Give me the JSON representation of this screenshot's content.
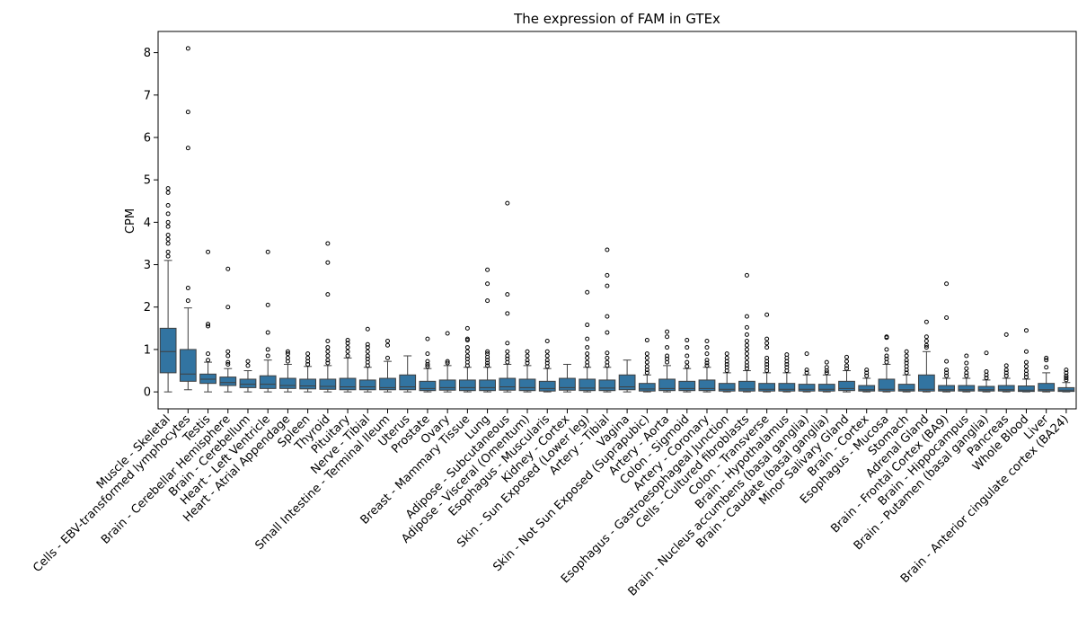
{
  "chart_data": {
    "type": "box",
    "title": "The expression of FAM in GTEx",
    "xlabel": "",
    "ylabel": "CPM",
    "ylim": [
      -0.4,
      8.5
    ],
    "yticks": [
      0,
      1,
      2,
      3,
      4,
      5,
      6,
      7,
      8
    ],
    "color": "#3274a1",
    "categories": [
      "Muscle - Skeletal",
      "Cells - EBV-transformed lymphocytes",
      "Testis",
      "Brain - Cerebellar Hemisphere",
      "Brain - Cerebellum",
      "Heart - Left Ventricle",
      "Heart - Atrial Appendage",
      "Spleen",
      "Thyroid",
      "Pituitary",
      "Nerve - Tibial",
      "Small Intestine - Terminal Ileum",
      "Uterus",
      "Prostate",
      "Ovary",
      "Breast - Mammary Tissue",
      "Lung",
      "Adipose - Subcutaneous",
      "Adipose - Visceral (Omentum)",
      "Esophagus - Muscularis",
      "Kidney - Cortex",
      "Skin - Sun Exposed (Lower leg)",
      "Artery - Tibial",
      "Vagina",
      "Skin - Not Sun Exposed (Suprapubic)",
      "Artery - Aorta",
      "Colon - Sigmoid",
      "Artery - Coronary",
      "Esophagus - Gastroesophageal Junction",
      "Cells - Cultured fibroblasts",
      "Colon - Transverse",
      "Brain - Hypothalamus",
      "Brain - Nucleus accumbens (basal ganglia)",
      "Brain - Caudate (basal ganglia)",
      "Minor Salivary Gland",
      "Brain - Cortex",
      "Esophagus - Mucosa",
      "Stomach",
      "Adrenal Gland",
      "Brain - Frontal Cortex (BA9)",
      "Brain - Hippocampus",
      "Brain - Putamen (basal ganglia)",
      "Pancreas",
      "Whole Blood",
      "Liver",
      "Brain - Anterior cingulate cortex (BA24)"
    ],
    "boxes": [
      {
        "q1": 0.45,
        "median": 0.95,
        "q3": 1.5,
        "whislo": 0.0,
        "whishi": 3.1,
        "fliers": [
          3.2,
          3.3,
          3.5,
          3.6,
          3.7,
          3.9,
          4.0,
          4.2,
          4.4,
          4.7,
          4.8
        ]
      },
      {
        "q1": 0.25,
        "median": 0.42,
        "q3": 1.0,
        "whislo": 0.05,
        "whishi": 1.98,
        "fliers": [
          2.15,
          2.45,
          5.75,
          6.6,
          8.1
        ]
      },
      {
        "q1": 0.2,
        "median": 0.3,
        "q3": 0.42,
        "whislo": 0.0,
        "whishi": 0.7,
        "fliers": [
          0.75,
          0.9,
          1.55,
          1.6,
          3.3
        ]
      },
      {
        "q1": 0.15,
        "median": 0.22,
        "q3": 0.35,
        "whislo": 0.0,
        "whishi": 0.55,
        "fliers": [
          0.65,
          0.7,
          0.85,
          0.95,
          2.0,
          2.9
        ]
      },
      {
        "q1": 0.1,
        "median": 0.18,
        "q3": 0.3,
        "whislo": 0.0,
        "whishi": 0.5,
        "fliers": [
          0.62,
          0.72
        ]
      },
      {
        "q1": 0.08,
        "median": 0.18,
        "q3": 0.38,
        "whislo": 0.0,
        "whishi": 0.75,
        "fliers": [
          0.85,
          1.0,
          1.4,
          2.05,
          3.3
        ]
      },
      {
        "q1": 0.08,
        "median": 0.15,
        "q3": 0.32,
        "whislo": 0.0,
        "whishi": 0.65,
        "fliers": [
          0.72,
          0.8,
          0.9,
          0.95
        ]
      },
      {
        "q1": 0.07,
        "median": 0.14,
        "q3": 0.3,
        "whislo": 0.0,
        "whishi": 0.6,
        "fliers": [
          0.65,
          0.72,
          0.8,
          0.9
        ]
      },
      {
        "q1": 0.06,
        "median": 0.13,
        "q3": 0.3,
        "whislo": 0.0,
        "whishi": 0.62,
        "fliers": [
          0.68,
          0.75,
          0.85,
          0.95,
          1.05,
          1.2,
          2.3,
          3.05,
          3.5
        ]
      },
      {
        "q1": 0.05,
        "median": 0.12,
        "q3": 0.32,
        "whislo": 0.0,
        "whishi": 0.8,
        "fliers": [
          0.85,
          0.95,
          1.05,
          1.15,
          1.22
        ]
      },
      {
        "q1": 0.05,
        "median": 0.12,
        "q3": 0.28,
        "whislo": 0.0,
        "whishi": 0.58,
        "fliers": [
          0.62,
          0.7,
          0.78,
          0.85,
          0.95,
          1.05,
          1.12,
          1.48
        ]
      },
      {
        "q1": 0.05,
        "median": 0.1,
        "q3": 0.32,
        "whislo": 0.0,
        "whishi": 0.72,
        "fliers": [
          0.8,
          1.1,
          1.2
        ]
      },
      {
        "q1": 0.05,
        "median": 0.12,
        "q3": 0.4,
        "whislo": 0.0,
        "whishi": 0.85,
        "fliers": []
      },
      {
        "q1": 0.03,
        "median": 0.08,
        "q3": 0.25,
        "whislo": 0.0,
        "whishi": 0.55,
        "fliers": [
          0.6,
          0.65,
          0.72,
          0.9,
          1.25
        ]
      },
      {
        "q1": 0.04,
        "median": 0.1,
        "q3": 0.28,
        "whislo": 0.0,
        "whishi": 0.62,
        "fliers": [
          0.68,
          0.72,
          1.38
        ]
      },
      {
        "q1": 0.03,
        "median": 0.1,
        "q3": 0.28,
        "whislo": 0.0,
        "whishi": 0.58,
        "fliers": [
          0.62,
          0.7,
          0.78,
          0.85,
          0.95,
          1.05,
          1.22,
          1.25,
          1.5
        ]
      },
      {
        "q1": 0.03,
        "median": 0.1,
        "q3": 0.28,
        "whislo": 0.0,
        "whishi": 0.58,
        "fliers": [
          0.62,
          0.68,
          0.75,
          0.82,
          0.9,
          0.95,
          2.15,
          2.55,
          2.88
        ]
      },
      {
        "q1": 0.04,
        "median": 0.12,
        "q3": 0.32,
        "whislo": 0.0,
        "whishi": 0.65,
        "fliers": [
          0.7,
          0.78,
          0.85,
          0.95,
          1.15,
          1.85,
          2.3,
          4.45
        ]
      },
      {
        "q1": 0.03,
        "median": 0.1,
        "q3": 0.3,
        "whislo": 0.0,
        "whishi": 0.62,
        "fliers": [
          0.68,
          0.75,
          0.85,
          0.95
        ]
      },
      {
        "q1": 0.02,
        "median": 0.08,
        "q3": 0.25,
        "whislo": 0.0,
        "whishi": 0.55,
        "fliers": [
          0.6,
          0.68,
          0.75,
          0.85,
          0.95,
          1.2
        ]
      },
      {
        "q1": 0.04,
        "median": 0.1,
        "q3": 0.32,
        "whislo": 0.0,
        "whishi": 0.65,
        "fliers": []
      },
      {
        "q1": 0.03,
        "median": 0.09,
        "q3": 0.3,
        "whislo": 0.0,
        "whishi": 0.58,
        "fliers": [
          0.62,
          0.7,
          0.8,
          0.9,
          1.05,
          1.25,
          1.58,
          2.35
        ]
      },
      {
        "q1": 0.03,
        "median": 0.09,
        "q3": 0.28,
        "whislo": 0.0,
        "whishi": 0.58,
        "fliers": [
          0.62,
          0.7,
          0.8,
          0.92,
          1.4,
          1.78,
          2.5,
          2.75,
          3.35
        ]
      },
      {
        "q1": 0.05,
        "median": 0.12,
        "q3": 0.4,
        "whislo": 0.0,
        "whishi": 0.75,
        "fliers": []
      },
      {
        "q1": 0.02,
        "median": 0.07,
        "q3": 0.2,
        "whislo": 0.0,
        "whishi": 0.4,
        "fliers": [
          0.45,
          0.52,
          0.6,
          0.7,
          0.8,
          0.9,
          1.22
        ]
      },
      {
        "q1": 0.03,
        "median": 0.08,
        "q3": 0.3,
        "whislo": 0.0,
        "whishi": 0.62,
        "fliers": [
          0.7,
          0.78,
          0.85,
          1.05,
          1.3,
          1.42
        ]
      },
      {
        "q1": 0.03,
        "median": 0.08,
        "q3": 0.25,
        "whislo": 0.0,
        "whishi": 0.55,
        "fliers": [
          0.6,
          0.7,
          0.85,
          1.05,
          1.22
        ]
      },
      {
        "q1": 0.03,
        "median": 0.08,
        "q3": 0.28,
        "whislo": 0.0,
        "whishi": 0.58,
        "fliers": [
          0.62,
          0.68,
          0.75,
          0.9,
          1.05,
          1.2
        ]
      },
      {
        "q1": 0.02,
        "median": 0.06,
        "q3": 0.2,
        "whislo": 0.0,
        "whishi": 0.45,
        "fliers": [
          0.5,
          0.58,
          0.65,
          0.72,
          0.8,
          0.9
        ]
      },
      {
        "q1": 0.02,
        "median": 0.07,
        "q3": 0.25,
        "whislo": 0.0,
        "whishi": 0.5,
        "fliers": [
          0.55,
          0.62,
          0.7,
          0.8,
          0.9,
          1.0,
          1.1,
          1.2,
          1.35,
          1.52,
          1.78,
          2.75
        ]
      },
      {
        "q1": 0.02,
        "median": 0.06,
        "q3": 0.2,
        "whislo": 0.0,
        "whishi": 0.45,
        "fliers": [
          0.5,
          0.58,
          0.65,
          0.72,
          0.8,
          1.05,
          1.15,
          1.25,
          1.82
        ]
      },
      {
        "q1": 0.02,
        "median": 0.06,
        "q3": 0.2,
        "whislo": 0.0,
        "whishi": 0.45,
        "fliers": [
          0.5,
          0.58,
          0.65,
          0.72,
          0.8,
          0.88
        ]
      },
      {
        "q1": 0.02,
        "median": 0.06,
        "q3": 0.18,
        "whislo": 0.0,
        "whishi": 0.4,
        "fliers": [
          0.45,
          0.52,
          0.9
        ]
      },
      {
        "q1": 0.02,
        "median": 0.06,
        "q3": 0.18,
        "whislo": 0.0,
        "whishi": 0.4,
        "fliers": [
          0.45,
          0.5,
          0.58,
          0.7
        ]
      },
      {
        "q1": 0.03,
        "median": 0.08,
        "q3": 0.25,
        "whislo": 0.0,
        "whishi": 0.5,
        "fliers": [
          0.55,
          0.62,
          0.72,
          0.82
        ]
      },
      {
        "q1": 0.02,
        "median": 0.05,
        "q3": 0.15,
        "whislo": 0.0,
        "whishi": 0.32,
        "fliers": [
          0.38,
          0.45,
          0.52
        ]
      },
      {
        "q1": 0.02,
        "median": 0.06,
        "q3": 0.3,
        "whislo": 0.0,
        "whishi": 0.65,
        "fliers": [
          0.7,
          0.78,
          0.85,
          1.0,
          1.28,
          1.3
        ]
      },
      {
        "q1": 0.02,
        "median": 0.05,
        "q3": 0.18,
        "whislo": 0.0,
        "whishi": 0.4,
        "fliers": [
          0.45,
          0.52,
          0.6,
          0.68,
          0.75,
          0.85,
          0.95
        ]
      },
      {
        "q1": 0.02,
        "median": 0.06,
        "q3": 0.4,
        "whislo": 0.0,
        "whishi": 0.95,
        "fliers": [
          1.05,
          1.1,
          1.2,
          1.3,
          1.65
        ]
      },
      {
        "q1": 0.02,
        "median": 0.05,
        "q3": 0.15,
        "whislo": 0.0,
        "whishi": 0.32,
        "fliers": [
          0.38,
          0.45,
          0.52,
          0.72,
          1.75,
          2.55
        ]
      },
      {
        "q1": 0.02,
        "median": 0.05,
        "q3": 0.15,
        "whislo": 0.0,
        "whishi": 0.32,
        "fliers": [
          0.38,
          0.45,
          0.55,
          0.68,
          0.85
        ]
      },
      {
        "q1": 0.02,
        "median": 0.05,
        "q3": 0.13,
        "whislo": 0.0,
        "whishi": 0.28,
        "fliers": [
          0.33,
          0.4,
          0.48,
          0.92
        ]
      },
      {
        "q1": 0.02,
        "median": 0.05,
        "q3": 0.15,
        "whislo": 0.0,
        "whishi": 0.32,
        "fliers": [
          0.38,
          0.45,
          0.52,
          0.62,
          1.35
        ]
      },
      {
        "q1": 0.01,
        "median": 0.04,
        "q3": 0.14,
        "whislo": 0.0,
        "whishi": 0.3,
        "fliers": [
          0.35,
          0.42,
          0.5,
          0.6,
          0.7,
          0.95,
          1.45
        ]
      },
      {
        "q1": 0.02,
        "median": 0.05,
        "q3": 0.2,
        "whislo": 0.0,
        "whishi": 0.45,
        "fliers": [
          0.58,
          0.75,
          0.8
        ]
      },
      {
        "q1": 0.01,
        "median": 0.04,
        "q3": 0.1,
        "whislo": 0.0,
        "whishi": 0.22,
        "fliers": [
          0.28,
          0.33,
          0.38,
          0.45,
          0.52
        ]
      }
    ]
  }
}
